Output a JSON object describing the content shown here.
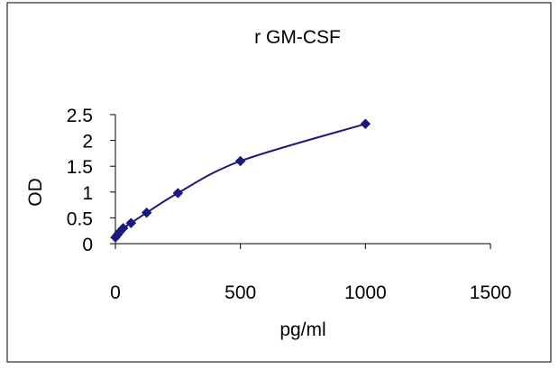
{
  "chart_data": {
    "type": "scatter",
    "title": "r GM-CSF",
    "xlabel": "pg/ml",
    "ylabel": "OD",
    "xlim": [
      0,
      1500
    ],
    "ylim": [
      0,
      2.5
    ],
    "x_ticks": [
      0,
      500,
      1000,
      1500
    ],
    "y_ticks": [
      0,
      0.5,
      1,
      1.5,
      2,
      2.5
    ],
    "x_tick_labels": [
      "0",
      "500",
      "1000",
      "1500"
    ],
    "y_tick_labels": [
      "0",
      "0.5",
      "1",
      "1.5",
      "2",
      "2.5"
    ],
    "grid": false,
    "legend": "none",
    "series": [
      {
        "marker": "diamond",
        "line": "smoothed",
        "color": "#1a1a7e",
        "x": [
          0,
          7.8,
          15.6,
          31.25,
          62.5,
          125,
          250,
          500,
          1000
        ],
        "y": [
          0.12,
          0.17,
          0.22,
          0.3,
          0.4,
          0.6,
          0.98,
          1.6,
          2.32
        ]
      }
    ]
  }
}
